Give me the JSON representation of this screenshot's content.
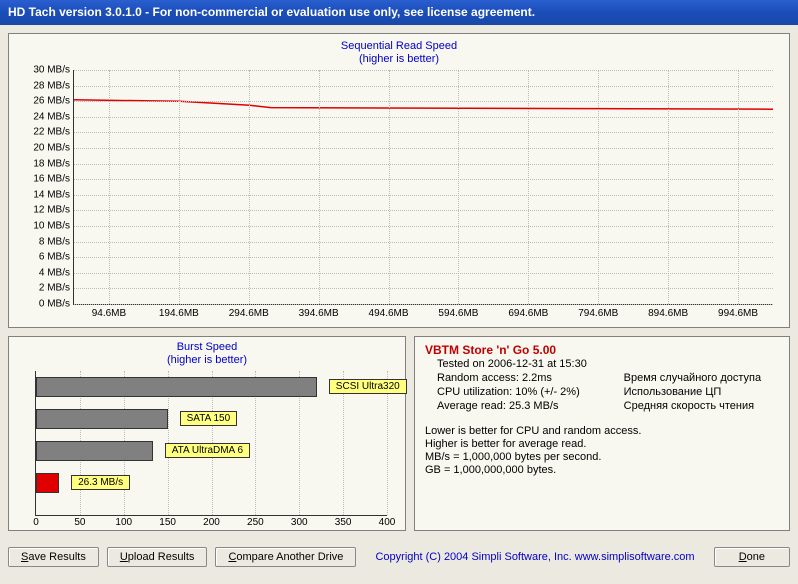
{
  "title": "HD Tach version 3.0.1.0  - For non-commercial or evaluation use only, see license agreement.",
  "seq": {
    "title1": "Sequential Read Speed",
    "title2": "(higher is better)",
    "ymax": 30,
    "ystep": 2,
    "ylabels": [
      "30 MB/s",
      "28 MB/s",
      "26 MB/s",
      "24 MB/s",
      "22 MB/s",
      "20 MB/s",
      "18 MB/s",
      "16 MB/s",
      "14 MB/s",
      "12 MB/s",
      "10 MB/s",
      "8 MB/s",
      "6 MB/s",
      "4 MB/s",
      "2 MB/s",
      "0 MB/s"
    ],
    "xlabels": [
      "94.6MB",
      "194.6MB",
      "294.6MB",
      "394.6MB",
      "494.6MB",
      "594.6MB",
      "694.6MB",
      "794.6MB",
      "894.6MB",
      "994.6MB"
    ],
    "line_color": "#e00000",
    "points": [
      [
        0,
        26.2
      ],
      [
        150,
        26.0
      ],
      [
        250,
        25.5
      ],
      [
        280,
        25.2
      ],
      [
        994.6,
        25.0
      ]
    ]
  },
  "burst": {
    "title1": "Burst Speed",
    "title2": "(higher is better)",
    "xmax": 400,
    "xstep": 50,
    "xlabels": [
      "0",
      "50",
      "100",
      "150",
      "200",
      "250",
      "300",
      "350",
      "400"
    ],
    "bars": [
      {
        "value": 320,
        "label": "SCSI Ultra320",
        "color_class": "bar"
      },
      {
        "value": 150,
        "label": "SATA 150",
        "color_class": "bar"
      },
      {
        "value": 133,
        "label": "ATA UltraDMA 6",
        "color_class": "bar"
      },
      {
        "value": 26.3,
        "label": "26.3 MB/s",
        "color_class": "bar-red"
      }
    ]
  },
  "info": {
    "device": "VBTM Store 'n' Go 5.00",
    "tested": "Tested on 2006-12-31 at 15:30",
    "random": "Random access: 2.2ms",
    "cpu": "CPU utilization: 10% (+/- 2%)",
    "avg": "Average read: 25.3 MB/s",
    "r_random": "Время случайного доступа",
    "r_cpu": "Использование ЦП",
    "r_avg": "Средняя скорость чтения",
    "note1": "Lower is better for CPU and random access.",
    "note2": "Higher is better for average read.",
    "note3": "MB/s = 1,000,000 bytes per second.",
    "note4": "GB = 1,000,000,000 bytes."
  },
  "buttons": {
    "save": "Save Results",
    "save_u": "S",
    "upload": "Upload Results",
    "upload_u": "U",
    "compare": "Compare Another Drive",
    "compare_u": "C",
    "done": "Done",
    "done_u": "D"
  },
  "copyright": "Copyright (C) 2004 Simpli Software, Inc. www.simplisoftware.com"
}
